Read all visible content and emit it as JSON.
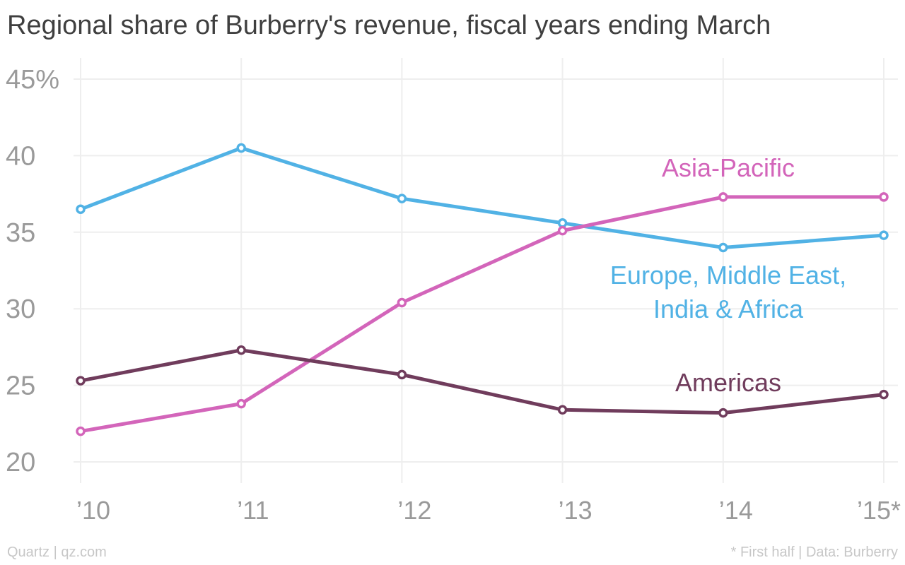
{
  "title": "Regional share of Burberry's revenue, fiscal years ending March",
  "footer": {
    "source_left": "Quartz | qz.com",
    "source_right": "* First half | Data: Burberry"
  },
  "chart_data": {
    "type": "line",
    "title": "Regional share of Burberry's revenue, fiscal years ending March",
    "x": [
      "’10",
      "’11",
      "’12",
      "’13",
      "’14",
      "’15*"
    ],
    "y_ticks": [
      20,
      25,
      30,
      35,
      40,
      45
    ],
    "y_tick_labels": [
      "20",
      "25",
      "30",
      "35",
      "40",
      "45%"
    ],
    "ylim": [
      20,
      45
    ],
    "grid": true,
    "series": [
      {
        "name": "Europe, Middle East, India & Africa",
        "label_lines": [
          "Europe, Middle East,",
          "India & Africa"
        ],
        "color": "#51b2e5",
        "values": [
          36.5,
          40.5,
          37.2,
          35.6,
          34.0,
          34.8
        ]
      },
      {
        "name": "Asia-Pacific",
        "label_lines": [
          "Asia-Pacific"
        ],
        "color": "#d365ba",
        "values": [
          22.0,
          23.8,
          30.4,
          35.1,
          37.3,
          37.3
        ]
      },
      {
        "name": "Americas",
        "label_lines": [
          "Americas"
        ],
        "color": "#703c5c",
        "values": [
          25.3,
          27.3,
          25.7,
          23.4,
          23.2,
          24.4
        ]
      }
    ]
  }
}
